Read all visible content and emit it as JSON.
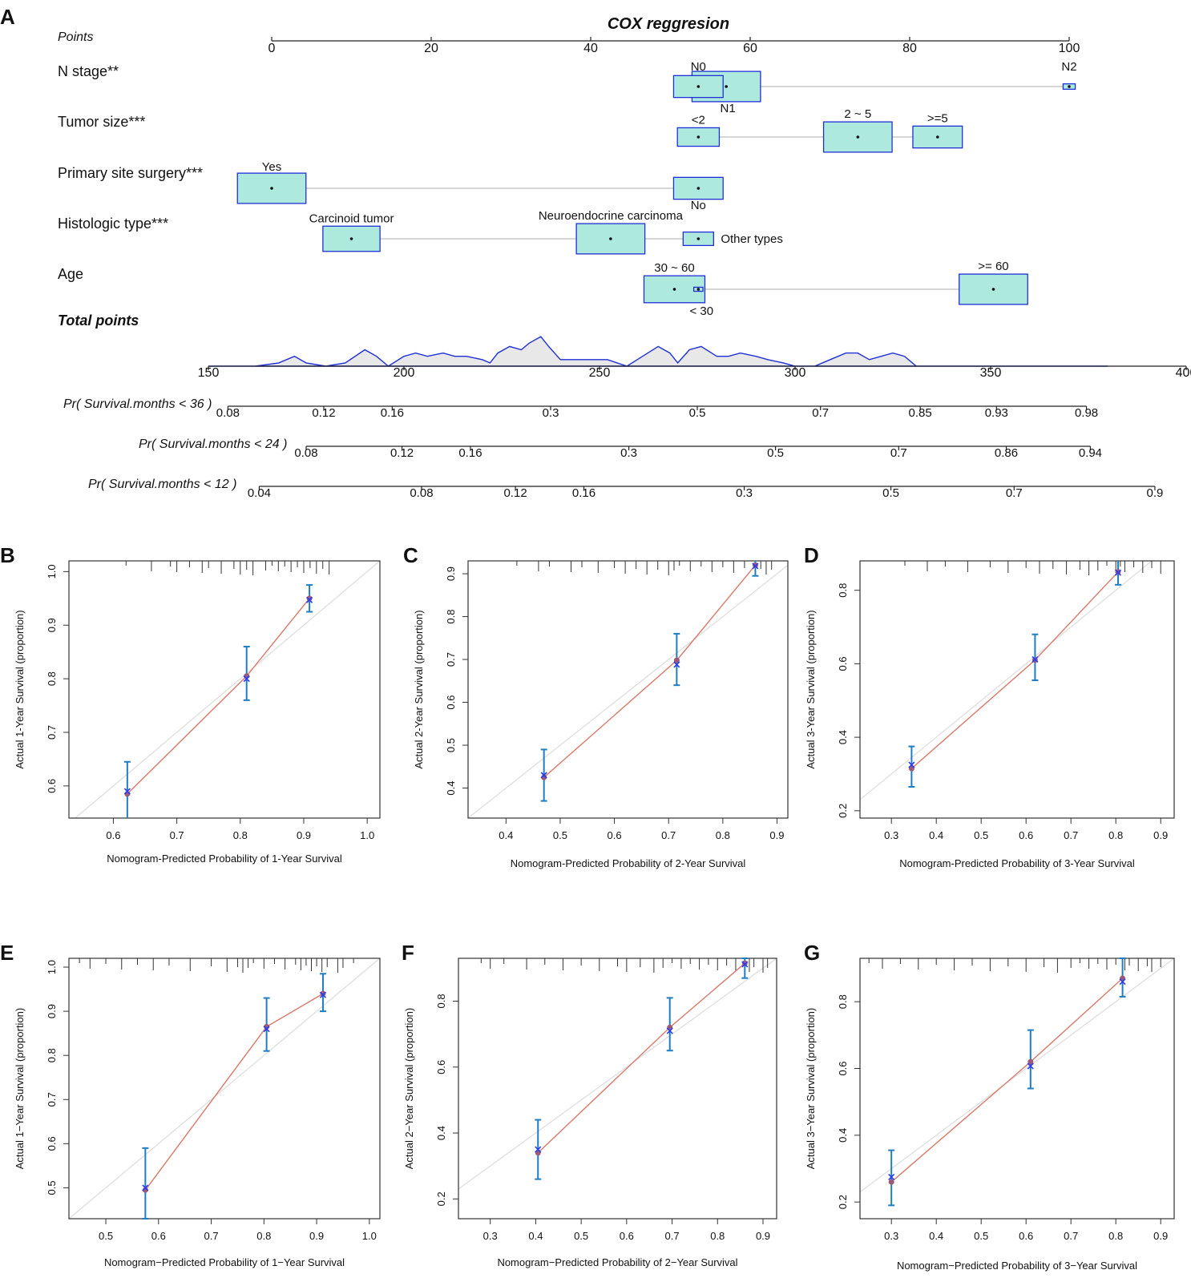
{
  "panel_a": {
    "letter": "A",
    "title": "COX reggresion",
    "points_label": "Points",
    "total_points_label": "Total points",
    "box_fill": "#aee9de",
    "box_stroke": "#1f2fd6",
    "density_fill": "#e8e8e8",
    "density_stroke": "#1f2fd6"
  },
  "chart_data": [
    {
      "type": "nomogram",
      "id": "A",
      "title": "COX reggresion",
      "points_axis": {
        "label": "Points",
        "range": [
          0,
          100
        ],
        "ticks": [
          0,
          20,
          40,
          60,
          80,
          100
        ]
      },
      "variables": [
        {
          "name": "N stage**",
          "levels": [
            {
              "label": "N0",
              "points": 53.5,
              "weight": 0.65
            },
            {
              "label": "N1",
              "points": 57.0,
              "weight": 0.9
            },
            {
              "label": "N2",
              "points": 100.0,
              "weight": 0.16
            }
          ]
        },
        {
          "name": "Tumor size***",
          "levels": [
            {
              "label": "<2",
              "points": 53.5,
              "weight": 0.55
            },
            {
              "label": "2 ~ 5",
              "points": 73.5,
              "weight": 0.9
            },
            {
              "label": ">=5",
              "points": 83.5,
              "weight": 0.65
            }
          ]
        },
        {
          "name": "Primary site surgery***",
          "levels": [
            {
              "label": "Yes",
              "points": 0.0,
              "weight": 0.9
            },
            {
              "label": "No",
              "points": 53.5,
              "weight": 0.65
            }
          ]
        },
        {
          "name": "Histologic type***",
          "levels": [
            {
              "label": "Carcinoid tumor",
              "points": 10.0,
              "weight": 0.75
            },
            {
              "label": "Neuroendocrine carcinoma",
              "points": 42.5,
              "weight": 0.9
            },
            {
              "label": "Other types",
              "points": 53.5,
              "weight": 0.4
            }
          ]
        },
        {
          "name": "Age",
          "levels": [
            {
              "label": "30 ~ 60",
              "points": 50.5,
              "weight": 0.8
            },
            {
              "label": "< 30",
              "points": 53.5,
              "weight": 0.12
            },
            {
              "label": ">= 60",
              "points": 90.5,
              "weight": 0.9
            }
          ]
        }
      ],
      "total_points_axis": {
        "label": "Total points",
        "range": [
          150,
          400
        ],
        "ticks": [
          150,
          200,
          250,
          300,
          350,
          400
        ]
      },
      "total_points_density": [
        [
          162,
          0
        ],
        [
          168,
          1
        ],
        [
          172,
          3
        ],
        [
          175,
          1
        ],
        [
          180,
          0
        ],
        [
          185,
          1
        ],
        [
          190,
          5
        ],
        [
          193,
          3
        ],
        [
          196,
          0
        ],
        [
          200,
          3
        ],
        [
          203,
          4
        ],
        [
          206,
          3
        ],
        [
          210,
          4
        ],
        [
          213,
          3
        ],
        [
          216,
          3
        ],
        [
          220,
          2
        ],
        [
          222,
          1
        ],
        [
          224,
          4
        ],
        [
          227,
          6
        ],
        [
          230,
          5
        ],
        [
          232,
          7
        ],
        [
          235,
          9
        ],
        [
          237,
          6
        ],
        [
          240,
          2
        ],
        [
          244,
          2
        ],
        [
          248,
          2
        ],
        [
          252,
          2
        ],
        [
          257,
          0
        ],
        [
          261,
          3
        ],
        [
          265,
          6
        ],
        [
          268,
          4
        ],
        [
          270,
          1
        ],
        [
          273,
          5
        ],
        [
          276,
          6
        ],
        [
          280,
          3
        ],
        [
          283,
          3
        ],
        [
          286,
          4
        ],
        [
          290,
          3
        ],
        [
          293,
          2
        ],
        [
          297,
          1
        ],
        [
          300,
          0
        ],
        [
          305,
          0
        ],
        [
          309,
          2
        ],
        [
          313,
          4
        ],
        [
          316,
          4
        ],
        [
          319,
          2
        ],
        [
          322,
          3
        ],
        [
          325,
          4
        ],
        [
          328,
          3
        ],
        [
          331,
          0
        ],
        [
          340,
          0
        ]
      ],
      "probability_axes": [
        {
          "label": "Pr( Survival.months < 36 )",
          "ticks": [
            {
              "label": "0.08",
              "points": 155.0
            },
            {
              "label": "0.12",
              "points": 179.5
            },
            {
              "label": "0.16",
              "points": 197.0
            },
            {
              "label": "0.3",
              "points": 237.5
            },
            {
              "label": "0.5",
              "points": 275.0
            },
            {
              "label": "0.7",
              "points": 306.5
            },
            {
              "label": "0.85",
              "points": 332.0
            },
            {
              "label": "0.93",
              "points": 351.5
            },
            {
              "label": "0.98",
              "points": 374.5
            }
          ]
        },
        {
          "label": "Pr( Survival.months < 24 )",
          "ticks": [
            {
              "label": "0.08",
              "points": 175.0
            },
            {
              "label": "0.12",
              "points": 199.5
            },
            {
              "label": "0.16",
              "points": 217.0
            },
            {
              "label": "0.3",
              "points": 257.5
            },
            {
              "label": "0.5",
              "points": 295.0
            },
            {
              "label": "0.7",
              "points": 326.5
            },
            {
              "label": "0.86",
              "points": 354.0
            },
            {
              "label": "0.94",
              "points": 375.5
            }
          ]
        },
        {
          "label": "Pr( Survival.months < 12 )",
          "ticks": [
            {
              "label": "0.04",
              "points": 163.0
            },
            {
              "label": "0.08",
              "points": 204.5
            },
            {
              "label": "0.12",
              "points": 228.5
            },
            {
              "label": "0.16",
              "points": 246.0
            },
            {
              "label": "0.3",
              "points": 287.0
            },
            {
              "label": "0.5",
              "points": 324.5
            },
            {
              "label": "0.7",
              "points": 356.0
            },
            {
              "label": "0.9",
              "points": 392.0
            }
          ]
        }
      ]
    },
    {
      "type": "calibration",
      "id": "B",
      "xlabel": "Nomogram-Predicted Probability of 1-Year Survival",
      "ylabel": "Actual 1-Year Survival (proportion)",
      "xlim": [
        0.53,
        1.02
      ],
      "ylim": [
        0.54,
        1.02
      ],
      "xticks": [
        0.6,
        0.7,
        0.8,
        0.9,
        1.0
      ],
      "yticks": [
        0.6,
        0.7,
        0.8,
        0.9,
        1.0
      ],
      "points": [
        {
          "x": 0.622,
          "observed": 0.585,
          "km": 0.59,
          "lo": 0.535,
          "hi": 0.645
        },
        {
          "x": 0.81,
          "observed": 0.805,
          "km": 0.8,
          "lo": 0.76,
          "hi": 0.86
        },
        {
          "x": 0.909,
          "observed": 0.95,
          "km": 0.947,
          "lo": 0.925,
          "hi": 0.975
        }
      ],
      "rug": [
        0.62,
        0.66,
        0.69,
        0.7,
        0.72,
        0.74,
        0.75,
        0.77,
        0.79,
        0.8,
        0.81,
        0.82,
        0.84,
        0.85,
        0.86,
        0.87,
        0.88,
        0.89,
        0.9,
        0.91,
        0.92,
        0.93,
        0.94
      ]
    },
    {
      "type": "calibration",
      "id": "C",
      "xlabel": "Nomogram-Predicted Probability of 2-Year Survival",
      "ylabel": "Actual 2-Year Survival (proportion)",
      "xlim": [
        0.33,
        0.92
      ],
      "ylim": [
        0.33,
        0.93
      ],
      "xticks": [
        0.4,
        0.5,
        0.6,
        0.7,
        0.8,
        0.9
      ],
      "yticks": [
        0.4,
        0.5,
        0.6,
        0.7,
        0.8,
        0.9
      ],
      "points": [
        {
          "x": 0.47,
          "observed": 0.425,
          "km": 0.43,
          "lo": 0.37,
          "hi": 0.49
        },
        {
          "x": 0.715,
          "observed": 0.698,
          "km": 0.688,
          "lo": 0.64,
          "hi": 0.76
        },
        {
          "x": 0.86,
          "observed": 0.92,
          "km": 0.918,
          "lo": 0.895,
          "hi": 0.935
        }
      ],
      "rug": [
        0.42,
        0.46,
        0.48,
        0.52,
        0.54,
        0.57,
        0.6,
        0.62,
        0.64,
        0.66,
        0.68,
        0.7,
        0.71,
        0.72,
        0.74,
        0.76,
        0.78,
        0.8,
        0.82,
        0.84,
        0.86,
        0.87,
        0.88,
        0.89
      ]
    },
    {
      "type": "calibration",
      "id": "D",
      "xlabel": "Nomogram-Predicted Probability of 3-Year Survival",
      "ylabel": "Actual 3-Year Survival (proportion)",
      "xlim": [
        0.23,
        0.93
      ],
      "ylim": [
        0.18,
        0.88
      ],
      "xticks": [
        0.3,
        0.4,
        0.5,
        0.6,
        0.7,
        0.8,
        0.9
      ],
      "yticks": [
        0.2,
        0.4,
        0.6,
        0.8
      ],
      "points": [
        {
          "x": 0.345,
          "observed": 0.315,
          "km": 0.325,
          "lo": 0.265,
          "hi": 0.375
        },
        {
          "x": 0.62,
          "observed": 0.61,
          "km": 0.612,
          "lo": 0.555,
          "hi": 0.68
        },
        {
          "x": 0.805,
          "observed": 0.85,
          "km": 0.848,
          "lo": 0.815,
          "hi": 0.895
        }
      ],
      "rug": [
        0.33,
        0.38,
        0.42,
        0.47,
        0.52,
        0.56,
        0.6,
        0.63,
        0.66,
        0.69,
        0.72,
        0.74,
        0.76,
        0.78,
        0.8,
        0.81,
        0.82,
        0.84,
        0.86,
        0.88,
        0.9
      ]
    },
    {
      "type": "calibration",
      "id": "E",
      "xlabel": "Nomogram−Predicted Probability of 1−Year Survival",
      "ylabel": "Actual 1−Year Survival (proportion)",
      "xlim": [
        0.43,
        1.02
      ],
      "ylim": [
        0.43,
        1.02
      ],
      "xticks": [
        0.5,
        0.6,
        0.7,
        0.8,
        0.9,
        1.0
      ],
      "yticks": [
        0.5,
        0.6,
        0.7,
        0.8,
        0.9,
        1.0
      ],
      "points": [
        {
          "x": 0.575,
          "observed": 0.495,
          "km": 0.5,
          "lo": 0.43,
          "hi": 0.59
        },
        {
          "x": 0.805,
          "observed": 0.865,
          "km": 0.86,
          "lo": 0.81,
          "hi": 0.93
        },
        {
          "x": 0.912,
          "observed": 0.94,
          "km": 0.937,
          "lo": 0.9,
          "hi": 0.985
        }
      ],
      "rug": [
        0.45,
        0.47,
        0.5,
        0.53,
        0.56,
        0.59,
        0.62,
        0.66,
        0.7,
        0.73,
        0.75,
        0.76,
        0.77,
        0.78,
        0.8,
        0.82,
        0.84,
        0.86,
        0.87,
        0.88,
        0.89,
        0.9,
        0.91,
        0.92,
        0.94,
        0.95,
        0.97
      ]
    },
    {
      "type": "calibration",
      "id": "F",
      "xlabel": "Nomogram−Predicted Probability of 2−Year Survival",
      "ylabel": "Actual 2−Year Survival (proportion)",
      "xlim": [
        0.23,
        0.93
      ],
      "ylim": [
        0.14,
        0.93
      ],
      "xticks": [
        0.3,
        0.4,
        0.5,
        0.6,
        0.7,
        0.8,
        0.9
      ],
      "yticks": [
        0.2,
        0.4,
        0.6,
        0.8
      ],
      "points": [
        {
          "x": 0.405,
          "observed": 0.34,
          "km": 0.35,
          "lo": 0.26,
          "hi": 0.44
        },
        {
          "x": 0.695,
          "observed": 0.72,
          "km": 0.71,
          "lo": 0.65,
          "hi": 0.81
        },
        {
          "x": 0.86,
          "observed": 0.915,
          "km": 0.912,
          "lo": 0.87,
          "hi": 0.93
        }
      ],
      "rug": [
        0.28,
        0.3,
        0.33,
        0.38,
        0.42,
        0.46,
        0.5,
        0.54,
        0.58,
        0.6,
        0.63,
        0.66,
        0.68,
        0.7,
        0.72,
        0.74,
        0.76,
        0.78,
        0.8,
        0.82,
        0.84,
        0.86,
        0.87,
        0.88,
        0.9,
        0.91
      ]
    },
    {
      "type": "calibration",
      "id": "G",
      "xlabel": "Nomogram−Predicted Probability of 3−Year Survival",
      "ylabel": "Actual 3−Year Survival (proportion)",
      "xlim": [
        0.23,
        0.93
      ],
      "ylim": [
        0.15,
        0.93
      ],
      "xticks": [
        0.3,
        0.4,
        0.5,
        0.6,
        0.7,
        0.8,
        0.9
      ],
      "yticks": [
        0.2,
        0.4,
        0.6,
        0.8
      ],
      "points": [
        {
          "x": 0.3,
          "observed": 0.26,
          "km": 0.275,
          "lo": 0.19,
          "hi": 0.355
        },
        {
          "x": 0.61,
          "observed": 0.62,
          "km": 0.607,
          "lo": 0.54,
          "hi": 0.715
        },
        {
          "x": 0.815,
          "observed": 0.87,
          "km": 0.86,
          "lo": 0.815,
          "hi": 0.93
        }
      ],
      "rug": [
        0.25,
        0.28,
        0.32,
        0.36,
        0.4,
        0.44,
        0.48,
        0.52,
        0.56,
        0.6,
        0.64,
        0.67,
        0.7,
        0.72,
        0.74,
        0.76,
        0.78,
        0.8,
        0.82,
        0.83,
        0.85,
        0.87,
        0.88,
        0.9
      ]
    }
  ]
}
